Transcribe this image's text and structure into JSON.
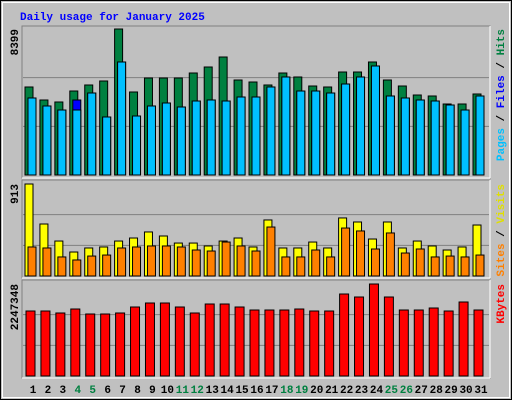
{
  "chart_data": [
    {
      "type": "bar",
      "title": "Daily usage for January 2025",
      "label_separator": " / ",
      "ylim": [
        0,
        8399
      ],
      "yticks": [
        8399
      ],
      "gridlines": [
        2800,
        5600
      ],
      "series": [
        {
          "name": "Pages",
          "color": "#00c0ff",
          "values": [
            4430,
            3970,
            3739,
            3739,
            4717,
            3337,
            6501,
            3394,
            3970,
            4142,
            3912,
            4257,
            4315,
            4257,
            4487,
            4487,
            5063,
            5638,
            4832,
            4832,
            4717,
            5235,
            5638,
            6271,
            4545,
            4430,
            4315,
            4257,
            4027,
            3739,
            4545
          ]
        },
        {
          "name": "Files",
          "color": "#0000ff",
          "values": [
            4430,
            3970,
            3739,
            4315,
            4717,
            3337,
            6501,
            3394,
            3970,
            4142,
            3912,
            4257,
            4315,
            4257,
            4487,
            4487,
            5063,
            5638,
            4832,
            4832,
            4717,
            5235,
            5638,
            6271,
            4545,
            4430,
            4315,
            4257,
            4027,
            3739,
            4545
          ]
        },
        {
          "name": "Hits",
          "color": "#008040",
          "values": [
            5063,
            4315,
            4200,
            4832,
            5178,
            5408,
            8399,
            4775,
            5580,
            5580,
            5580,
            5868,
            6213,
            6788,
            5465,
            5350,
            5178,
            5868,
            5638,
            5120,
            5063,
            5925,
            5925,
            6501,
            5465,
            5120,
            4602,
            4545,
            4085,
            4085,
            4660
          ]
        }
      ]
    },
    {
      "type": "bar",
      "label_separator": " / ",
      "ylim": [
        0,
        913
      ],
      "yticks": [
        913
      ],
      "gridlines": [
        304,
        609
      ],
      "series": [
        {
          "name": "Sites",
          "color": "#ff8000",
          "values": [
            288,
            278,
            189,
            159,
            198,
            208,
            278,
            288,
            298,
            298,
            288,
            258,
            248,
            337,
            298,
            248,
            486,
            189,
            189,
            258,
            189,
            476,
            447,
            268,
            427,
            228,
            268,
            189,
            198,
            189,
            208
          ]
        },
        {
          "name": "Visits",
          "color": "#ffff00",
          "values": [
            913,
            516,
            347,
            238,
            278,
            288,
            347,
            377,
            437,
            397,
            327,
            327,
            298,
            347,
            377,
            288,
            556,
            278,
            278,
            337,
            278,
            576,
            536,
            367,
            536,
            278,
            347,
            298,
            258,
            288,
            506
          ]
        }
      ]
    },
    {
      "type": "bar",
      "ylim": [
        0,
        2247348
      ],
      "yticks": [
        2247348
      ],
      "gridlines": [
        749116,
        1498232
      ],
      "series": [
        {
          "name": "KBytes",
          "color": "#ff0000",
          "values": [
            1587800,
            1587800,
            1539000,
            1636700,
            1514500,
            1514500,
            1539000,
            1685500,
            1783200,
            1783200,
            1685500,
            1539000,
            1758800,
            1758800,
            1685500,
            1612200,
            1612200,
            1612200,
            1636700,
            1587800,
            1587800,
            2003100,
            1929800,
            2247348,
            1929800,
            1612200,
            1612200,
            1661100,
            1587800,
            1807700,
            1612200
          ]
        }
      ],
      "categories": [
        "1",
        "2",
        "3",
        "4",
        "5",
        "6",
        "7",
        "8",
        "9",
        "10",
        "11",
        "12",
        "13",
        "14",
        "15",
        "16",
        "17",
        "18",
        "19",
        "20",
        "21",
        "22",
        "23",
        "24",
        "25",
        "26",
        "27",
        "28",
        "29",
        "30",
        "31"
      ],
      "category_colors": [
        "#000000",
        "#000000",
        "#000000",
        "#008040",
        "#008040",
        "#000000",
        "#000000",
        "#000000",
        "#000000",
        "#000000",
        "#008040",
        "#008040",
        "#000000",
        "#000000",
        "#000000",
        "#000000",
        "#000000",
        "#008040",
        "#008040",
        "#000000",
        "#000000",
        "#000000",
        "#000000",
        "#000000",
        "#008040",
        "#008040",
        "#000000",
        "#000000",
        "#000000",
        "#000000",
        "#000000"
      ]
    }
  ]
}
